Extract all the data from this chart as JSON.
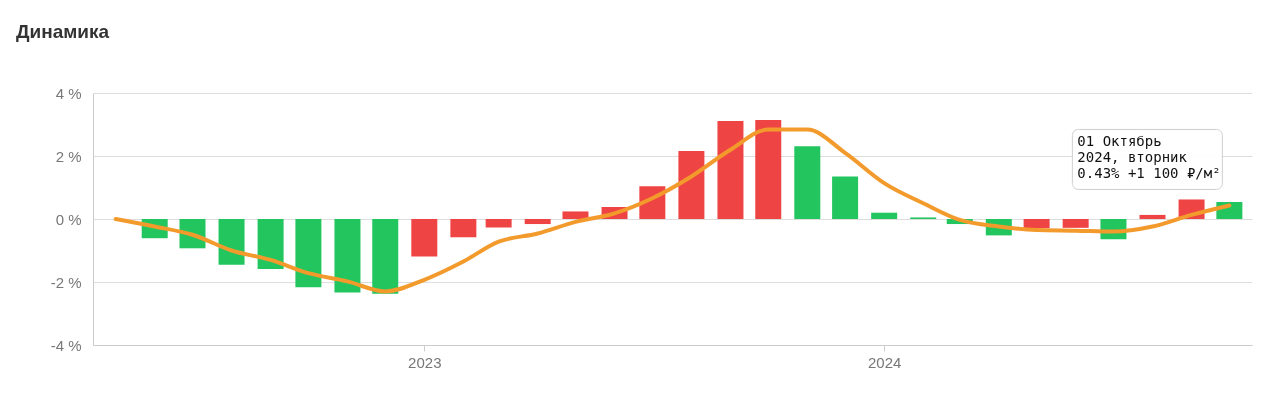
{
  "chart_data": {
    "type": "bar",
    "title": "Динамика",
    "x": [
      "2022-06-01",
      "2022-07-01",
      "2022-08-01",
      "2022-09-01",
      "2022-10-01",
      "2022-11-01",
      "2022-12-01",
      "2023-01-01",
      "2023-02-01",
      "2023-03-01",
      "2023-04-01",
      "2023-05-01",
      "2023-06-01",
      "2023-07-01",
      "2023-08-01",
      "2023-09-01",
      "2023-10-01",
      "2023-11-01",
      "2023-12-01",
      "2024-01-01",
      "2024-02-01",
      "2024-03-01",
      "2024-04-01",
      "2024-05-01",
      "2024-06-01",
      "2024-07-01",
      "2024-08-01",
      "2024-09-01",
      "2024-10-01"
    ],
    "series": [
      {
        "values": [
          -0.61,
          -0.93,
          -1.45,
          -1.59,
          -2.17,
          -2.33,
          -2.37,
          -1.19,
          -0.58,
          -0.27,
          -0.16,
          0.24,
          0.38,
          1.04,
          2.16,
          3.11,
          3.14,
          2.31,
          1.35,
          0.2,
          0.05,
          -0.16,
          -0.52,
          -0.29,
          -0.28,
          -0.64,
          0.13,
          0.62,
          0.54
        ],
        "colors": [
          "#22c55e",
          "#22c55e",
          "#22c55e",
          "#22c55e",
          "#22c55e",
          "#22c55e",
          "#22c55e",
          "#ef4444",
          "#ef4444",
          "#ef4444",
          "#ef4444",
          "#ef4444",
          "#ef4444",
          "#ef4444",
          "#ef4444",
          "#ef4444",
          "#ef4444",
          "#22c55e",
          "#22c55e",
          "#22c55e",
          "#22c55e",
          "#22c55e",
          "#22c55e",
          "#ef4444",
          "#ef4444",
          "#22c55e",
          "#ef4444",
          "#ef4444",
          "#22c55e"
        ]
      },
      {
        "type": "line",
        "color": "#f39a2c",
        "x": [
          "2022-05-01",
          "2022-06-01",
          "2022-07-01",
          "2022-08-01",
          "2022-09-01",
          "2022-10-01",
          "2022-11-01",
          "2022-12-01",
          "2023-01-01",
          "2023-02-01",
          "2023-03-01",
          "2023-04-01",
          "2023-05-01",
          "2023-06-01",
          "2023-07-01",
          "2023-08-01",
          "2023-09-01",
          "2023-10-01",
          "2023-11-01",
          "2023-12-01",
          "2024-01-01",
          "2024-02-01",
          "2024-03-01",
          "2024-04-01",
          "2024-05-01",
          "2024-06-01",
          "2024-07-01",
          "2024-08-01",
          "2024-09-01",
          "2024-10-01"
        ],
        "values": [
          0,
          -0.24,
          -0.5,
          -1.0,
          -1.3,
          -1.72,
          -1.98,
          -2.3,
          -1.93,
          -1.35,
          -0.72,
          -0.46,
          -0.09,
          0.18,
          0.66,
          1.35,
          2.2,
          2.84,
          2.84,
          2.1,
          1.14,
          0.5,
          -0.03,
          -0.24,
          -0.35,
          -0.37,
          -0.4,
          -0.24,
          0.13,
          0.43
        ]
      }
    ],
    "xlim": [
      "2022-04-17",
      "2024-10-15"
    ],
    "xticks": [
      "2023",
      "2024"
    ],
    "ylim": [
      -4,
      4
    ],
    "yticks": [
      {
        "value": -4,
        "label": "-4 %"
      },
      {
        "value": -2,
        "label": "-2 %"
      },
      {
        "value": 0,
        "label": "0 %"
      },
      {
        "value": 2,
        "label": "2 %"
      },
      {
        "value": 4,
        "label": "4 %"
      }
    ],
    "grid": "y",
    "annotations": [
      {
        "text": "01 Октябрь\n2024, вторник\n0.43%   +1 100 ₽/м²",
        "x": "2024-10-01",
        "y": 0.43
      }
    ]
  }
}
